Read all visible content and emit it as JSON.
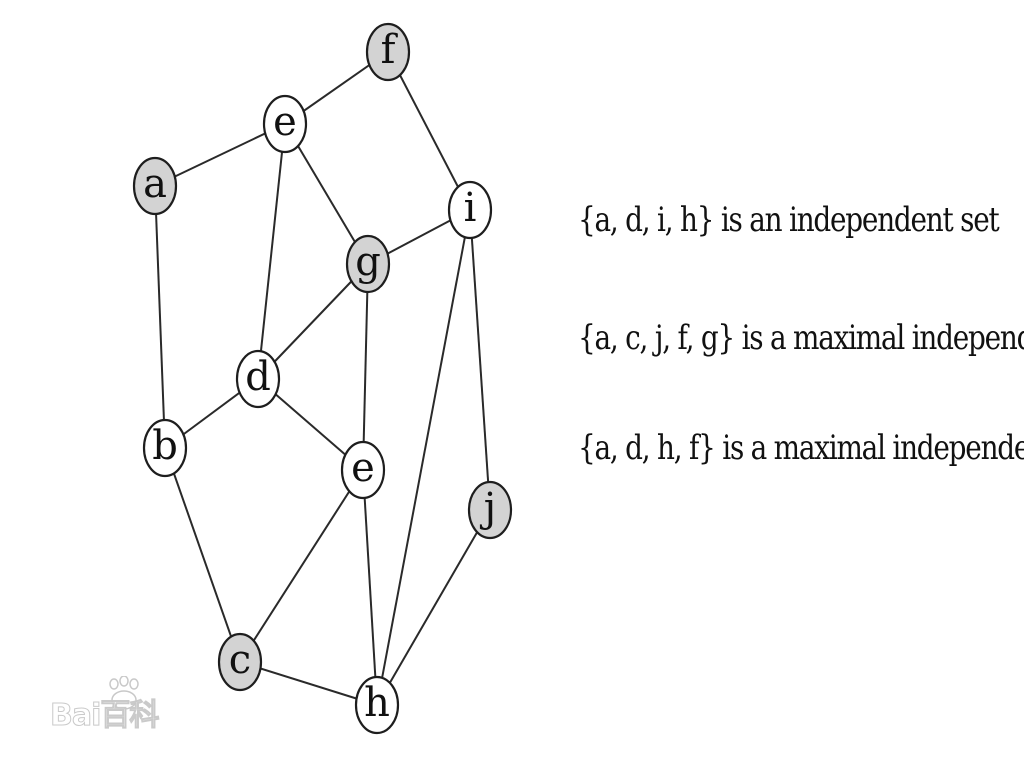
{
  "nodes": [
    {
      "id": "f",
      "label": "f",
      "shaded": true
    },
    {
      "id": "e_top",
      "label": "e",
      "shaded": false
    },
    {
      "id": "a",
      "label": "a",
      "shaded": true
    },
    {
      "id": "i",
      "label": "i",
      "shaded": false
    },
    {
      "id": "g",
      "label": "g",
      "shaded": true
    },
    {
      "id": "d",
      "label": "d",
      "shaded": false
    },
    {
      "id": "b",
      "label": "b",
      "shaded": false
    },
    {
      "id": "e_mid",
      "label": "e",
      "shaded": false
    },
    {
      "id": "j",
      "label": "j",
      "shaded": true
    },
    {
      "id": "c",
      "label": "c",
      "shaded": true
    },
    {
      "id": "h",
      "label": "h",
      "shaded": false
    }
  ],
  "edges": [
    [
      "a",
      "e_top"
    ],
    [
      "e_top",
      "f"
    ],
    [
      "f",
      "i"
    ],
    [
      "e_top",
      "d"
    ],
    [
      "e_top",
      "g"
    ],
    [
      "g",
      "i"
    ],
    [
      "a",
      "b"
    ],
    [
      "d",
      "g"
    ],
    [
      "b",
      "d"
    ],
    [
      "d",
      "e_mid"
    ],
    [
      "g",
      "e_mid"
    ],
    [
      "i",
      "h"
    ],
    [
      "i",
      "j"
    ],
    [
      "b",
      "c"
    ],
    [
      "c",
      "e_mid"
    ],
    [
      "e_mid",
      "h"
    ],
    [
      "c",
      "h"
    ],
    [
      "h",
      "j"
    ]
  ],
  "colors": {
    "shaded_fill": "#d3d3d3",
    "plain_fill": "#ffffff",
    "stroke": "#1e1e1e"
  },
  "statements": [
    "{a, d, i, h} is an independent set",
    "{a, c, j, f, g} is a maximal independent set",
    "{a, d, h, f} is a maximal independent set"
  ],
  "watermark": {
    "text": "Bai百科",
    "icon": "paw-print-icon"
  }
}
